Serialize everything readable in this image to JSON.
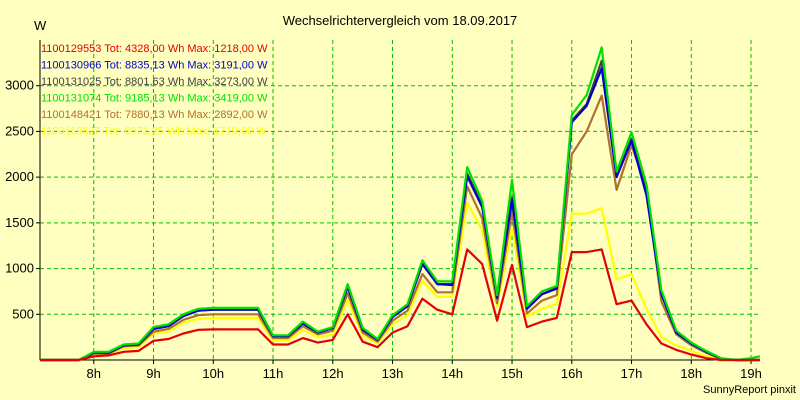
{
  "chart_data": {
    "type": "line",
    "title": "Wechselrichtervergleich vom 18.09.2017",
    "ylabel": "W",
    "credit": "SunnyReport pinxit",
    "xlim": [
      7.1,
      19.15
    ],
    "ylim": [
      0,
      3500
    ],
    "grid": true,
    "legend_position": "top-left",
    "x_ticks": [
      8,
      9,
      10,
      11,
      12,
      13,
      14,
      15,
      16,
      17,
      18,
      19
    ],
    "x_tick_labels": [
      "8h",
      "9h",
      "10h",
      "11h",
      "12h",
      "13h",
      "14h",
      "15h",
      "16h",
      "17h",
      "18h",
      "19h"
    ],
    "y_ticks": [
      500,
      1000,
      1500,
      2000,
      2500,
      3000
    ],
    "y_tick_labels": [
      "500",
      "1000",
      "1500",
      "2000",
      "2500",
      "3000"
    ],
    "x": [
      7.1,
      7.5,
      7.75,
      8.0,
      8.25,
      8.5,
      8.75,
      9.0,
      9.25,
      9.5,
      9.75,
      10.0,
      10.25,
      10.5,
      10.75,
      11.0,
      11.25,
      11.5,
      11.75,
      12.0,
      12.25,
      12.5,
      12.75,
      13.0,
      13.25,
      13.5,
      13.75,
      14.0,
      14.25,
      14.5,
      14.75,
      15.0,
      15.25,
      15.5,
      15.75,
      16.0,
      16.25,
      16.5,
      16.75,
      17.0,
      17.25,
      17.5,
      17.75,
      18.0,
      18.25,
      18.5,
      18.75,
      19.0,
      19.15
    ],
    "series": [
      {
        "name": "1100129553 Tot: 4328,00 Wh Max: 1218,00 W",
        "color": "#e60000",
        "values": [
          0,
          0,
          0,
          40,
          50,
          90,
          100,
          210,
          230,
          290,
          330,
          335,
          335,
          335,
          335,
          170,
          170,
          240,
          190,
          220,
          500,
          200,
          140,
          300,
          370,
          670,
          550,
          500,
          1210,
          1050,
          430,
          1040,
          360,
          420,
          460,
          1180,
          1180,
          1210,
          610,
          650,
          390,
          180,
          110,
          60,
          20,
          0,
          0,
          0,
          0
        ]
      },
      {
        "name": "1100130966 Tot: 8835,13 Wh Max: 3191,00 W",
        "color": "#0000d0",
        "values": [
          0,
          0,
          0,
          80,
          80,
          160,
          170,
          340,
          370,
          480,
          540,
          550,
          550,
          550,
          550,
          260,
          260,
          400,
          300,
          350,
          800,
          330,
          220,
          470,
          590,
          1050,
          830,
          820,
          2010,
          1670,
          680,
          1750,
          560,
          720,
          780,
          2600,
          2780,
          3191,
          2000,
          2400,
          1800,
          720,
          300,
          180,
          90,
          15,
          0,
          0,
          0
        ]
      },
      {
        "name": "1100131025 Tot: 8801,63 Wh Max: 3273,00 W",
        "color": "#404040",
        "values": [
          0,
          0,
          0,
          80,
          80,
          160,
          170,
          340,
          370,
          480,
          540,
          550,
          550,
          550,
          550,
          260,
          260,
          400,
          300,
          350,
          800,
          330,
          220,
          470,
          590,
          1050,
          830,
          830,
          2040,
          1690,
          680,
          1780,
          570,
          720,
          790,
          2620,
          2800,
          3273,
          2010,
          2420,
          1820,
          730,
          300,
          180,
          90,
          15,
          0,
          0,
          0
        ]
      },
      {
        "name": "1100131074 Tot: 9185,13 Wh Max: 3419,00 W",
        "color": "#00e000",
        "values": [
          0,
          0,
          0,
          90,
          90,
          170,
          180,
          360,
          390,
          500,
          560,
          570,
          570,
          570,
          570,
          270,
          270,
          420,
          310,
          360,
          830,
          350,
          230,
          490,
          610,
          1090,
          860,
          860,
          2110,
          1740,
          710,
          1970,
          590,
          750,
          810,
          2680,
          2900,
          3419,
          2060,
          2490,
          1920,
          760,
          320,
          190,
          100,
          20,
          0,
          20,
          40
        ]
      },
      {
        "name": "1100148421 Tot: 7880,13 Wh Max: 2892,00 W",
        "color": "#b07030",
        "values": [
          0,
          0,
          0,
          70,
          70,
          150,
          160,
          310,
          340,
          440,
          490,
          500,
          500,
          500,
          500,
          240,
          240,
          370,
          280,
          320,
          730,
          300,
          200,
          430,
          540,
          940,
          740,
          740,
          1900,
          1550,
          620,
          1620,
          510,
          650,
          710,
          2250,
          2500,
          2892,
          1860,
          2350,
          1880,
          640,
          280,
          160,
          80,
          10,
          0,
          0,
          0
        ]
      },
      {
        "name": "1100119827 Tot: 6071,25 Wh Max: 1719,00 W",
        "color": "#ffff00",
        "values": [
          0,
          0,
          0,
          60,
          60,
          130,
          140,
          290,
          310,
          410,
          450,
          460,
          460,
          460,
          460,
          210,
          210,
          330,
          250,
          280,
          660,
          270,
          180,
          390,
          490,
          870,
          690,
          690,
          1720,
          1420,
          580,
          1450,
          480,
          560,
          610,
          1600,
          1600,
          1660,
          880,
          940,
          560,
          250,
          160,
          100,
          40,
          0,
          0,
          0,
          0
        ]
      }
    ]
  }
}
